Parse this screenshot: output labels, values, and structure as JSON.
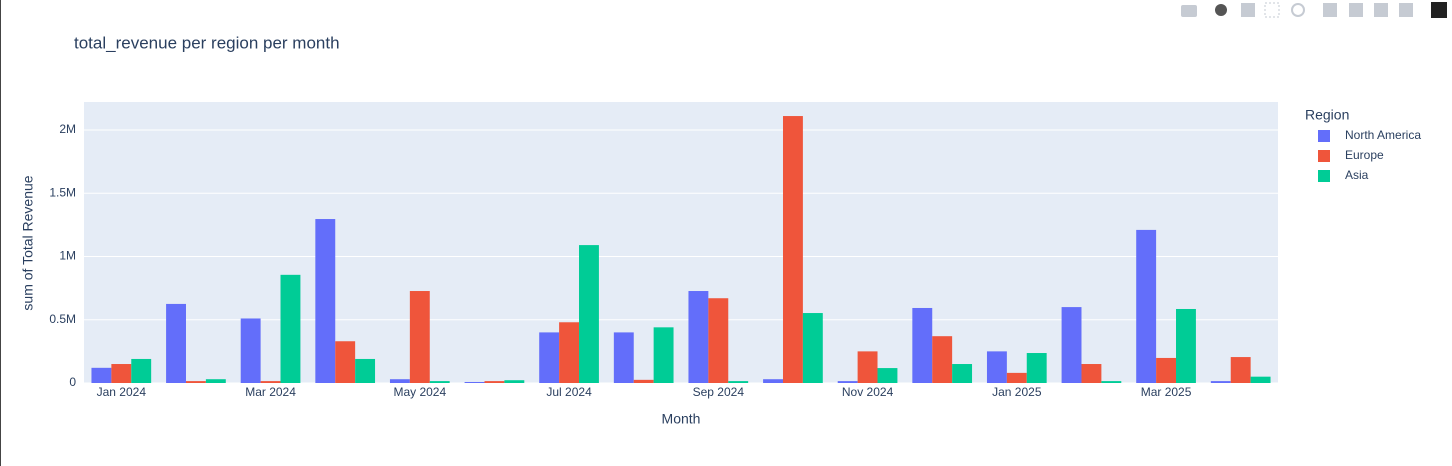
{
  "chart_data": {
    "type": "bar",
    "title": "total_revenue per region per month",
    "x_label": "Month",
    "y_label": "sum of Total Revenue",
    "legend_title": "Region",
    "legend_position": "right",
    "grid": true,
    "categories": [
      "Jan 2024",
      null,
      "Mar 2024",
      null,
      "May 2024",
      null,
      "Jul 2024",
      null,
      "Sep 2024",
      null,
      "Nov 2024",
      null,
      "Jan 2025",
      null,
      "Mar 2025",
      null
    ],
    "series": [
      {
        "name": "North America",
        "color": "#636efa",
        "values": [
          120000,
          625000,
          510000,
          1296000,
          30000,
          8000,
          400000,
          400000,
          727000,
          30000,
          15000,
          593000,
          250000,
          600000,
          1210000,
          15000
        ]
      },
      {
        "name": "Europe",
        "color": "#ef553b",
        "values": [
          150000,
          15000,
          15000,
          330000,
          727000,
          15000,
          480000,
          25000,
          670000,
          2110000,
          250000,
          370000,
          80000,
          150000,
          198000,
          205000
        ]
      },
      {
        "name": "Asia",
        "color": "#00cc96",
        "values": [
          190000,
          30000,
          855000,
          190000,
          15000,
          22000,
          1090000,
          440000,
          15000,
          553000,
          118000,
          150000,
          237000,
          15000,
          585000,
          50000
        ]
      }
    ],
    "ylim": [
      0,
      2221000
    ],
    "yticks": [
      0,
      {
        "value": 500000,
        "label": "0.5M"
      },
      {
        "value": 1000000,
        "label": "1M"
      },
      {
        "value": 1500000,
        "label": "1.5M"
      },
      {
        "value": 2000000,
        "label": "2M"
      }
    ]
  }
}
